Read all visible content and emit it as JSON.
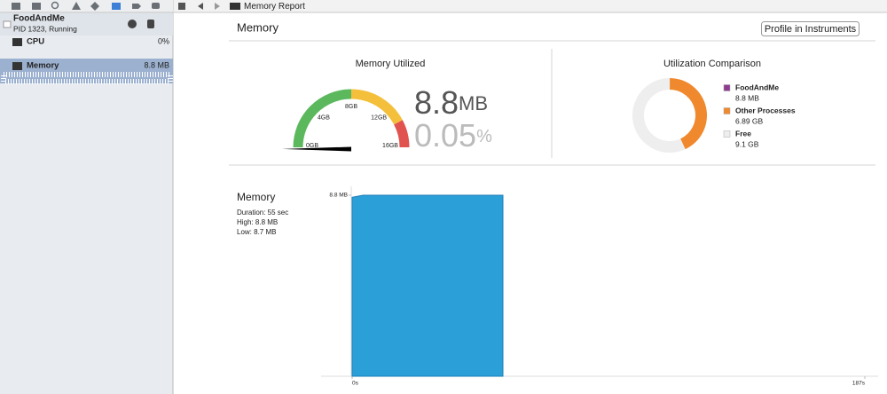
{
  "sidebar": {
    "process": {
      "name": "FoodAndMe",
      "status": "PID 1323, Running"
    },
    "gauges": [
      {
        "name": "CPU",
        "value": "0%"
      },
      {
        "name": "Memory",
        "value": "8.8 MB"
      }
    ]
  },
  "path_bar": {
    "title": "Memory Report"
  },
  "header": {
    "title": "Memory",
    "button": "Profile in Instruments"
  },
  "memory_utilized": {
    "title": "Memory Utilized",
    "ticks": [
      {
        "value": 0,
        "label": "0GB"
      },
      {
        "value": 4,
        "label": "4GB"
      },
      {
        "value": 8,
        "label": "8GB"
      },
      {
        "value": 12,
        "label": "12GB"
      },
      {
        "value": 16,
        "label": "16GB"
      }
    ],
    "needle": 0.0088,
    "amount": "8.8",
    "amount_unit": "MB",
    "percent": "0.05",
    "percent_unit": "%"
  },
  "utilization_comparison": {
    "title": "Utilization Comparison",
    "items": [
      {
        "name": "FoodAndMe",
        "value": 0.0088,
        "value_label": "8.8 MB",
        "color": "#8e3c8e"
      },
      {
        "name": "Other Processes",
        "value": 6.89,
        "value_label": "6.89 GB",
        "color": "#f0892e"
      },
      {
        "name": "Free",
        "value": 9.1,
        "value_label": "9.1 GB",
        "color": "#eeeeee"
      }
    ]
  },
  "memory_chart": {
    "type": "area",
    "title": "Memory",
    "stats": [
      "Duration: 55 sec",
      "High: 8.8 MB",
      "Low: 8.7 MB"
    ],
    "x": [
      0,
      4,
      55
    ],
    "values": [
      8.7,
      8.8,
      8.8
    ],
    "color": "#2a9fd8",
    "xlim": [
      0,
      187
    ],
    "xticks": [
      {
        "value": 0,
        "label": "0s"
      },
      {
        "value": 187,
        "label": "187s"
      }
    ],
    "ylim": [
      0,
      8.8
    ],
    "yticks": [
      {
        "value": 8.8,
        "label": "8.8 MB"
      }
    ]
  }
}
